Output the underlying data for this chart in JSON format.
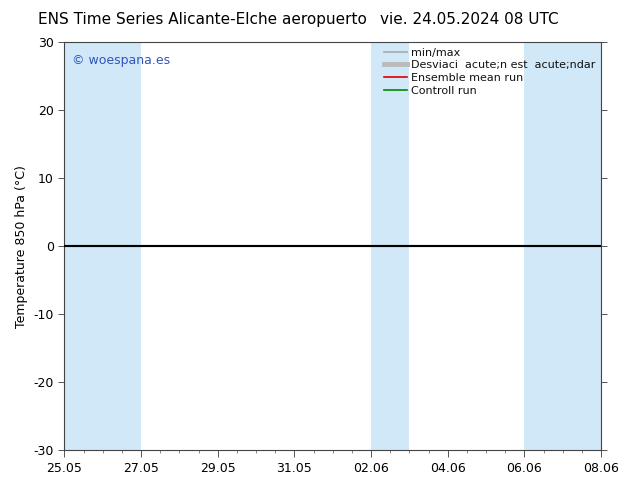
{
  "title_left": "ENS Time Series Alicante-Elche aeropuerto",
  "title_right": "vie. 24.05.2024 08 UTC",
  "ylabel": "Temperature 850 hPa (°C)",
  "ylim": [
    -30,
    30
  ],
  "yticks": [
    -30,
    -20,
    -10,
    0,
    10,
    20,
    30
  ],
  "xlim_start": 0,
  "xlim_end": 14,
  "xtick_labels": [
    "25.05",
    "27.05",
    "29.05",
    "31.05",
    "02.06",
    "04.06",
    "06.06",
    "08.06"
  ],
  "xtick_positions": [
    0,
    2,
    4,
    6,
    8,
    10,
    12,
    14
  ],
  "watermark": "© woespana.es",
  "watermark_color": "#3355bb",
  "bg_color": "#ffffff",
  "plot_bg_color": "#ffffff",
  "shaded_bands": [
    {
      "x_start": 0,
      "x_end": 2
    },
    {
      "x_start": 8,
      "x_end": 9
    },
    {
      "x_start": 12,
      "x_end": 14
    }
  ],
  "shaded_band_color": "#d0e8f8",
  "legend_entries": [
    {
      "label": "min/max",
      "color": "#aaaaaa",
      "lw": 1.2
    },
    {
      "label": "Desviaci  acute;n est  acute;ndar",
      "color": "#bbbbbb",
      "lw": 3.5
    },
    {
      "label": "Ensemble mean run",
      "color": "#dd0000",
      "lw": 1.2
    },
    {
      "label": "Controll run",
      "color": "#008800",
      "lw": 1.2
    }
  ],
  "zero_line_color": "#000000",
  "zero_line_lw": 1.5,
  "controll_run_color": "#008800",
  "controll_run_lw": 1.5,
  "title_fontsize": 11,
  "axis_label_fontsize": 9,
  "tick_fontsize": 9,
  "legend_fontsize": 8
}
